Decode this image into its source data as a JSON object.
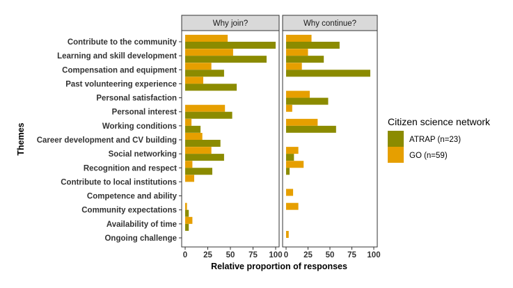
{
  "chart_data": {
    "type": "bar",
    "orientation": "horizontal",
    "grouped": true,
    "facets": [
      "Why join?",
      "Why continue?"
    ],
    "categories": [
      "Contribute to the community",
      "Learning and skill development",
      "Compensation and equipment",
      "Past volunteering experience",
      "Personal satisfaction",
      "Personal interest",
      "Working conditions",
      "Career development and CV building",
      "Social networking",
      "Recognition and respect",
      "Contribute to local institutions",
      "Competence and ability",
      "Community expectations",
      "Availability of time",
      "Ongoing challenge"
    ],
    "series": [
      {
        "name": "ATRAP (n=23)",
        "color": "#8b8b00",
        "values": {
          "Why join?": [
            100,
            90,
            43,
            57,
            0,
            52,
            17,
            39,
            43,
            30,
            0,
            0,
            4,
            4,
            0
          ],
          "Why continue?": [
            61,
            43,
            96,
            0,
            48,
            0,
            57,
            0,
            9,
            4,
            0,
            0,
            0,
            0,
            0
          ]
        }
      },
      {
        "name": "GO (n=59)",
        "color": "#e69f00",
        "values": {
          "Why join?": [
            47,
            53,
            29,
            20,
            0,
            44,
            7,
            19,
            29,
            8,
            10,
            0,
            2,
            8,
            0
          ],
          "Why continue?": [
            29,
            25,
            18,
            0,
            27,
            7,
            36,
            0,
            14,
            20,
            0,
            8,
            14,
            0,
            3
          ]
        }
      }
    ],
    "xlabel": "Relative proportion of responses",
    "ylabel": "Themes",
    "xlim": [
      0,
      100
    ],
    "xticks": [
      "0",
      "25",
      "50",
      "75",
      "100"
    ],
    "legend_title": "Citizen science network",
    "legend_position": "right"
  }
}
